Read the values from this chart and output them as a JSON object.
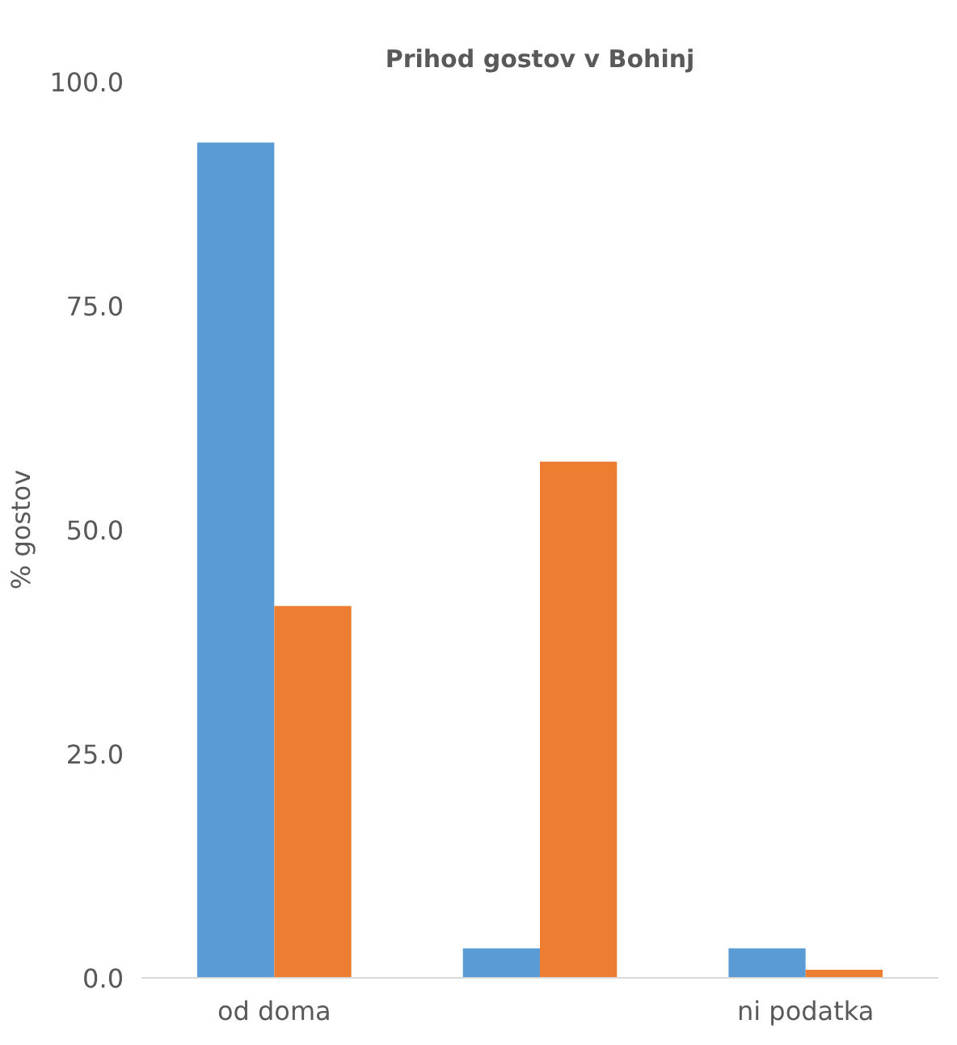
{
  "chart_data": {
    "type": "bar",
    "title": "Prihod gostov v Bohinj",
    "ylabel": "% gostov",
    "categories": [
      "od doma",
      null,
      "ni podatka"
    ],
    "series": [
      {
        "color": "#5b9bd5",
        "values": [
          93.2,
          3.3,
          3.3
        ]
      },
      {
        "color": "#ed7d31",
        "values": [
          41.5,
          57.6,
          0.9
        ]
      }
    ],
    "ylim": [
      0,
      100
    ],
    "yticks": [
      {
        "value": 0,
        "label": "0.0"
      },
      {
        "value": 25,
        "label": "25.0"
      },
      {
        "value": 50,
        "label": "50.0"
      },
      {
        "value": 75,
        "label": "75.0"
      },
      {
        "value": 100,
        "label": "100.0"
      }
    ],
    "grid": false,
    "legend": false
  }
}
